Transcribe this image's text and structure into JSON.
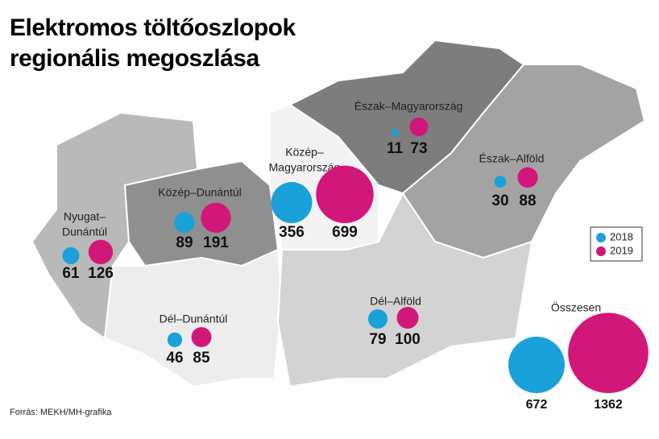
{
  "title": [
    "Elektromos töltőoszlopok",
    "regionális megoszlása"
  ],
  "source": "Forrás: MEKH/MH-grafika",
  "legend": [
    {
      "name": "2018",
      "color": "#1ba1d9"
    },
    {
      "name": "2019",
      "color": "#d2177b"
    }
  ],
  "regions": [
    {
      "name": [
        "Nyugat–",
        "Dunántúl"
      ],
      "values": [
        61,
        126
      ]
    },
    {
      "name": [
        "Közép–Dunántúl"
      ],
      "values": [
        89,
        191
      ]
    },
    {
      "name": [
        "Közép–",
        "Magyarország"
      ],
      "values": [
        356,
        699
      ]
    },
    {
      "name": [
        "Észak–Magyarország"
      ],
      "values": [
        11,
        73
      ]
    },
    {
      "name": [
        "Észak–Alföld"
      ],
      "values": [
        30,
        88
      ]
    },
    {
      "name": [
        "Dél–Dunántúl"
      ],
      "values": [
        46,
        85
      ]
    },
    {
      "name": [
        "Dél–Alföld"
      ],
      "values": [
        79,
        100
      ]
    }
  ],
  "total": {
    "name": "Összesen",
    "values": [
      672,
      1362
    ]
  }
}
